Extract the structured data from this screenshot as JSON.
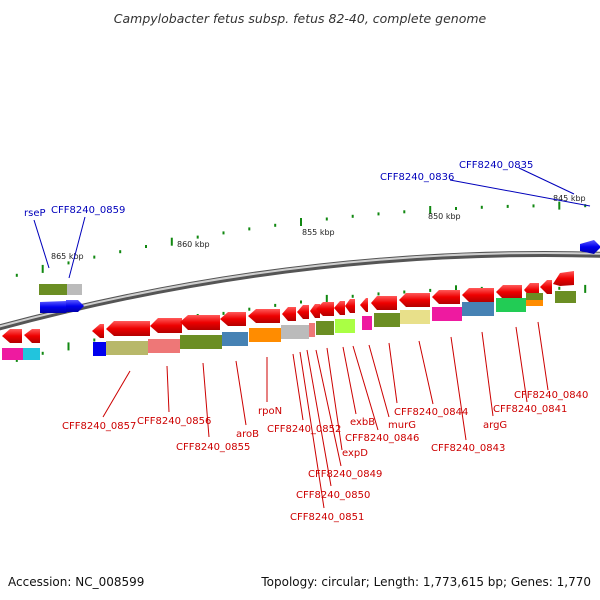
{
  "title": "Campylobacter fetus subsp. fetus 82-40, complete genome",
  "scale_labels": [
    "845 kbp",
    "850 kbp",
    "855 kbp",
    "860 kbp",
    "865 kbp"
  ],
  "red_labels": [
    "CFF8240_0857",
    "CFF8240_0856",
    "CFF8240_0855",
    "aroB",
    "rpoN",
    "CFF8240_0852",
    "CFF8240_0851",
    "CFF8240_0850",
    "CFF8240_0849",
    "expD",
    "exbB",
    "CFF8240_0846",
    "murG",
    "CFF8240_0844",
    "CFF8240_0843",
    "argG",
    "CFF8240_0841",
    "CFF8240_0840"
  ],
  "blue_labels": [
    "CFF8240_0835",
    "CFF8240_0836",
    "rseP",
    "CFF8240_0859"
  ],
  "footer": {
    "accession": "Accession: NC_008599",
    "topology": "Topology: circular; Length: 1,773,615 bp; Genes: 1,770"
  },
  "colors": {
    "forward_gene": "#0000ee",
    "reverse_gene": "#ee0000",
    "tick": "#118811",
    "backbone": "#888888"
  }
}
